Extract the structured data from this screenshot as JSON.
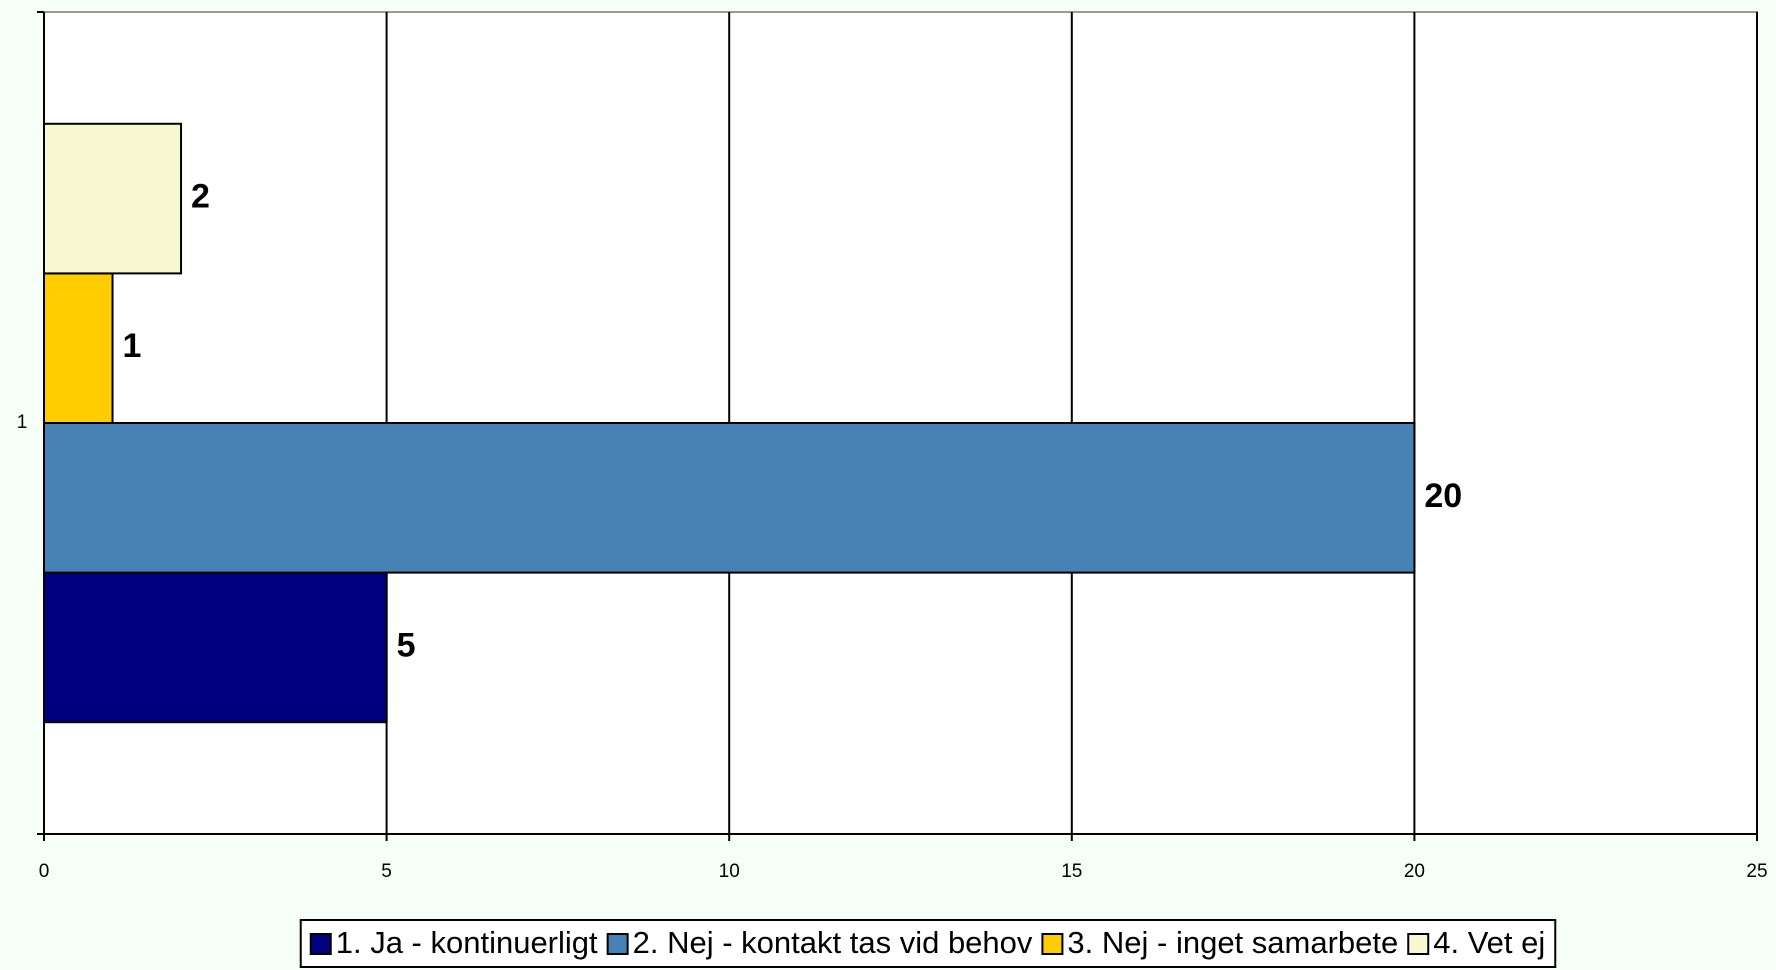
{
  "chart_data": {
    "type": "bar",
    "orientation": "horizontal",
    "categories": [
      "1"
    ],
    "series": [
      {
        "name": "1. Ja - kontinuerligt",
        "color": "#000080",
        "values": [
          5
        ]
      },
      {
        "name": "2. Nej - kontakt tas vid behov",
        "color": "#4682b4",
        "values": [
          20
        ]
      },
      {
        "name": "3. Nej - inget samarbete",
        "color": "#ffcc00",
        "values": [
          1
        ]
      },
      {
        "name": "4. Vet ej",
        "color": "#f8f8d0",
        "values": [
          2
        ]
      }
    ],
    "xlim": [
      0,
      25
    ],
    "xticks": [
      0,
      5,
      10,
      15,
      20,
      25
    ],
    "grid": true,
    "legend": "bottom"
  }
}
